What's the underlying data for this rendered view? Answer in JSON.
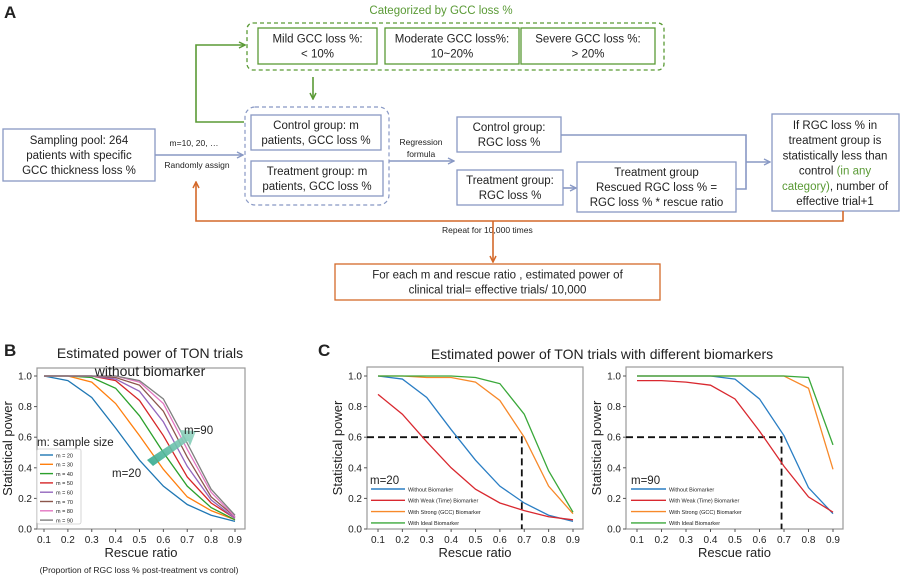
{
  "panel_labels": {
    "a": "A",
    "b": "B",
    "c": "C"
  },
  "diagram": {
    "category_title": "Categorized by GCC loss %",
    "categories": [
      {
        "lines": [
          "Mild GCC loss %:",
          "< 10%"
        ]
      },
      {
        "lines": [
          "Moderate GCC loss%:",
          "10~20%"
        ]
      },
      {
        "lines": [
          "Severe GCC loss %:",
          "> 20%"
        ]
      }
    ],
    "sampling_pool": [
      "Sampling pool: 264",
      "patients with specific",
      "GCC thickness loss %"
    ],
    "assign_label_top": "m=10, 20, …",
    "assign_label_bottom": "Randomly assign",
    "control_gcc": [
      "Control group: m",
      "patients, GCC loss %"
    ],
    "treatment_gcc": [
      "Treatment group: m",
      "patients, GCC loss %"
    ],
    "regression_label": [
      "Regression",
      "formula"
    ],
    "control_rgc": [
      "Control group:",
      "RGC loss %"
    ],
    "treatment_rgc": [
      "Treatment group:",
      "RGC loss %"
    ],
    "rescued": [
      "Treatment group",
      "Rescued RGC loss % =",
      "RGC loss % * rescue ratio"
    ],
    "decision": [
      [
        {
          "t": "If RGC loss % in"
        }
      ],
      [
        {
          "t": "treatment group is"
        }
      ],
      [
        {
          "t": "statistically less than"
        }
      ],
      [
        {
          "t": "control "
        },
        {
          "t": "(in any",
          "hl": true
        }
      ],
      [
        {
          "t": "category)",
          "hl": true
        },
        {
          "t": ", number of"
        }
      ],
      [
        {
          "t": "effective trial+1"
        }
      ]
    ],
    "repeat_label": "Repeat for 10,000 times",
    "result": [
      "For each m and rescue ratio , estimated power of",
      "clinical trial= effective trials/ 10,000"
    ],
    "colors": {
      "blue": "#8898c4",
      "green": "#5a9a35",
      "orange": "#d4692a",
      "highlight": "#5a9a35"
    }
  },
  "chart_data": [
    {
      "id": "B",
      "type": "line",
      "title": [
        "Estimated power of TON trials",
        "without biomarker"
      ],
      "xlabel": "Rescue ratio",
      "xnote": "(Proportion of RGC loss % post-treatment vs control)",
      "ylabel": "Statistical power",
      "x": [
        0.1,
        0.2,
        0.3,
        0.4,
        0.5,
        0.6,
        0.7,
        0.8,
        0.9
      ],
      "xlim": [
        0.1,
        0.9
      ],
      "ylim": [
        0.0,
        1.0
      ],
      "yticks": [
        "0.0",
        "0.2",
        "0.4",
        "0.6",
        "0.8",
        "1.0"
      ],
      "xticks": [
        "0.1",
        "0.2",
        "0.3",
        "0.4",
        "0.5",
        "0.6",
        "0.7",
        "0.8",
        "0.9"
      ],
      "legend_title": "m: sample size",
      "legend_position": "lower-left",
      "annotations": [
        "m=20",
        "m=90"
      ],
      "series": [
        {
          "name": "m = 20",
          "color": "#1f77b4",
          "values": [
            1.0,
            0.97,
            0.86,
            0.66,
            0.45,
            0.28,
            0.16,
            0.09,
            0.05
          ]
        },
        {
          "name": "m = 30",
          "color": "#ff7f0e",
          "values": [
            1.0,
            1.0,
            0.96,
            0.82,
            0.61,
            0.39,
            0.21,
            0.12,
            0.06
          ]
        },
        {
          "name": "m = 40",
          "color": "#2ca02c",
          "values": [
            1.0,
            1.0,
            0.99,
            0.92,
            0.74,
            0.5,
            0.28,
            0.14,
            0.06
          ]
        },
        {
          "name": "m = 50",
          "color": "#d62728",
          "values": [
            1.0,
            1.0,
            1.0,
            0.97,
            0.84,
            0.61,
            0.34,
            0.17,
            0.07
          ]
        },
        {
          "name": "m = 60",
          "color": "#9467bd",
          "values": [
            1.0,
            1.0,
            1.0,
            0.98,
            0.9,
            0.7,
            0.41,
            0.19,
            0.07
          ]
        },
        {
          "name": "m = 70",
          "color": "#8c564b",
          "values": [
            1.0,
            1.0,
            1.0,
            0.99,
            0.94,
            0.77,
            0.47,
            0.21,
            0.08
          ]
        },
        {
          "name": "m = 80",
          "color": "#e377c2",
          "values": [
            1.0,
            1.0,
            1.0,
            1.0,
            0.96,
            0.82,
            0.52,
            0.24,
            0.08
          ]
        },
        {
          "name": "m = 90",
          "color": "#7f7f7f",
          "values": [
            1.0,
            1.0,
            1.0,
            1.0,
            0.97,
            0.85,
            0.56,
            0.26,
            0.09
          ]
        }
      ]
    },
    {
      "id": "C1",
      "type": "line",
      "title": "Estimated power of TON trials with different biomarkers",
      "xlabel": "Rescue ratio",
      "ylabel": "Statistical power",
      "x": [
        0.1,
        0.2,
        0.3,
        0.4,
        0.5,
        0.6,
        0.7,
        0.8,
        0.9
      ],
      "xlim": [
        0.1,
        0.9
      ],
      "ylim": [
        0.0,
        1.0
      ],
      "yticks": [
        "0.0",
        "0.2",
        "0.4",
        "0.6",
        "0.8",
        "1.0"
      ],
      "xticks": [
        "0.1",
        "0.2",
        "0.3",
        "0.4",
        "0.5",
        "0.6",
        "0.7",
        "0.8",
        "0.9"
      ],
      "legend_title": "m=20",
      "legend_position": "lower-left",
      "reference_lines": {
        "y": 0.6,
        "x": 0.69
      },
      "series": [
        {
          "name": "Without Biomarker",
          "color": "#2a7ec4",
          "values": [
            1.0,
            0.98,
            0.86,
            0.65,
            0.45,
            0.28,
            0.17,
            0.09,
            0.05
          ]
        },
        {
          "name": "With Weak (Time) Biomarker",
          "color": "#d9282f",
          "values": [
            0.88,
            0.75,
            0.57,
            0.4,
            0.26,
            0.17,
            0.12,
            0.08,
            0.06
          ]
        },
        {
          "name": "With Strong (GCC) Biomarker",
          "color": "#f7892a",
          "values": [
            1.0,
            1.0,
            0.99,
            0.99,
            0.96,
            0.84,
            0.6,
            0.28,
            0.1
          ]
        },
        {
          "name": "With Ideal Biomarker",
          "color": "#3aa83a",
          "values": [
            1.0,
            1.0,
            1.0,
            1.0,
            0.99,
            0.95,
            0.75,
            0.38,
            0.11
          ]
        }
      ]
    },
    {
      "id": "C2",
      "type": "line",
      "xlabel": "Rescue ratio",
      "ylabel": "Statistical power",
      "x": [
        0.1,
        0.2,
        0.3,
        0.4,
        0.5,
        0.6,
        0.7,
        0.8,
        0.9
      ],
      "xlim": [
        0.1,
        0.9
      ],
      "ylim": [
        0.0,
        1.0
      ],
      "yticks": [
        "0.0",
        "0.2",
        "0.4",
        "0.6",
        "0.8",
        "1.0"
      ],
      "xticks": [
        "0.1",
        "0.2",
        "0.3",
        "0.4",
        "0.5",
        "0.6",
        "0.7",
        "0.8",
        "0.9"
      ],
      "legend_title": "m=90",
      "legend_position": "lower-left",
      "reference_lines": {
        "y": 0.6,
        "x": 0.69
      },
      "series": [
        {
          "name": "Without Biomarker",
          "color": "#2a7ec4",
          "values": [
            1.0,
            1.0,
            1.0,
            1.0,
            0.98,
            0.85,
            0.61,
            0.27,
            0.1
          ]
        },
        {
          "name": "With Weak (Time) Biomarker",
          "color": "#d9282f",
          "values": [
            0.97,
            0.97,
            0.96,
            0.94,
            0.85,
            0.64,
            0.41,
            0.21,
            0.11
          ]
        },
        {
          "name": "With Strong (GCC) Biomarker",
          "color": "#f7892a",
          "values": [
            1.0,
            1.0,
            1.0,
            1.0,
            1.0,
            1.0,
            1.0,
            0.92,
            0.39
          ]
        },
        {
          "name": "With Ideal Biomarker",
          "color": "#3aa83a",
          "values": [
            1.0,
            1.0,
            1.0,
            1.0,
            1.0,
            1.0,
            1.0,
            0.99,
            0.55
          ]
        }
      ]
    }
  ]
}
